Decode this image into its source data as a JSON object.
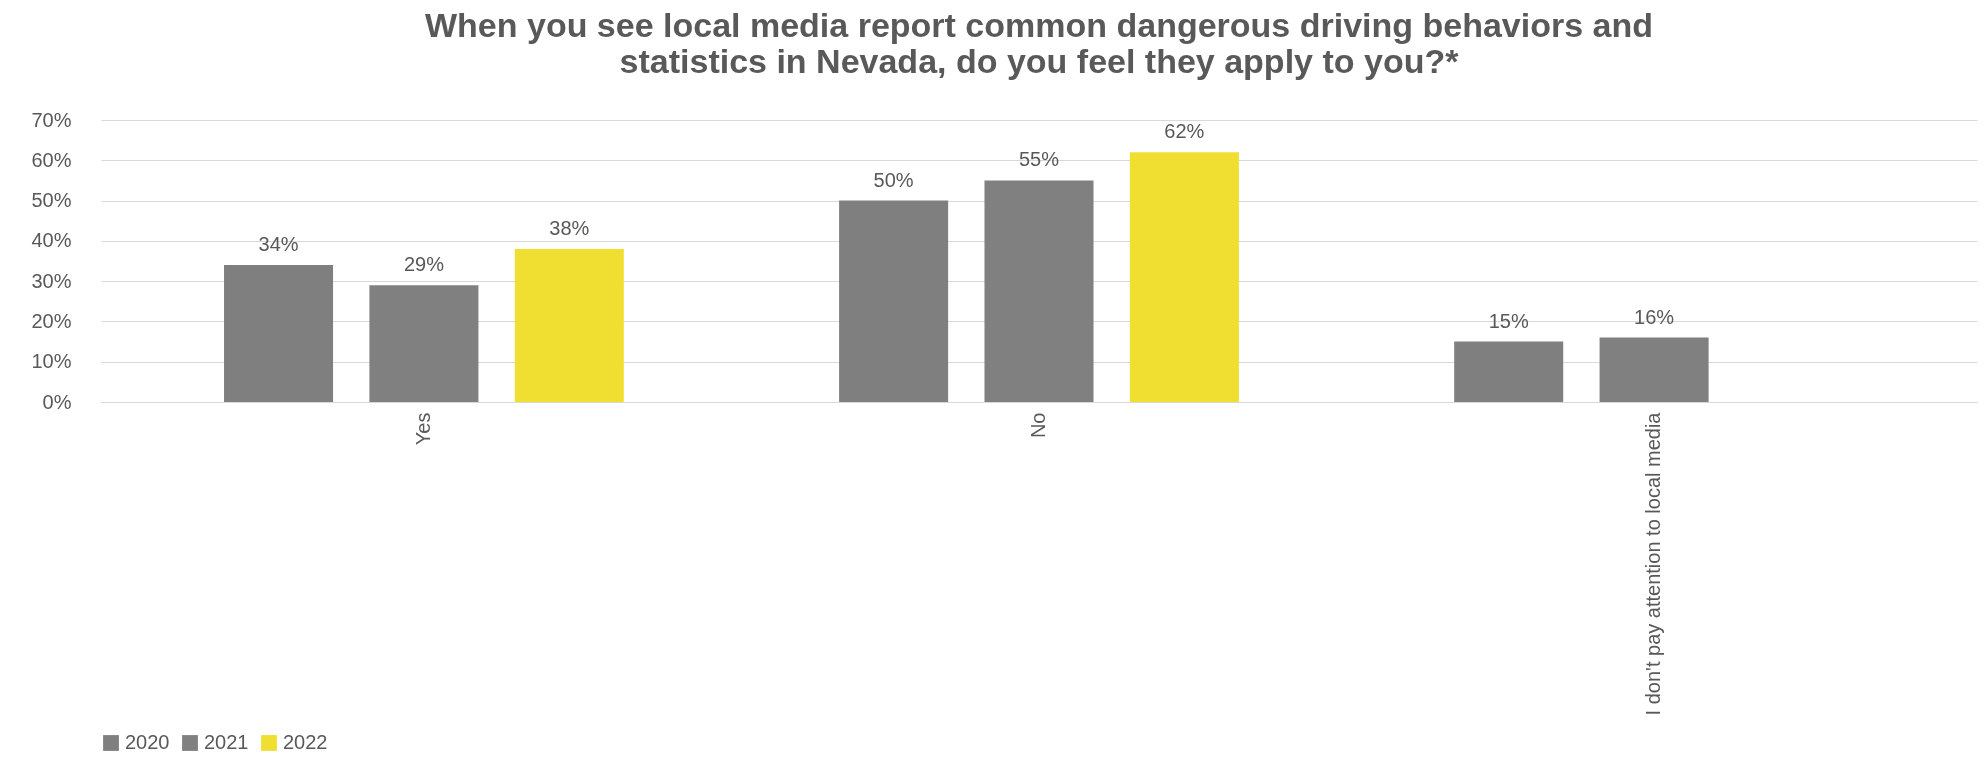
{
  "chart_data": {
    "type": "bar",
    "title": "When you see local media report common dangerous driving behaviors and statistics in Nevada, do you feel they apply to you?*",
    "categories": [
      "Yes",
      "No",
      "I don't pay attention to local media"
    ],
    "series": [
      {
        "name": "2020",
        "color": "#7f7f7f",
        "values": [
          34,
          50,
          15
        ],
        "value_labels": [
          "34%",
          "50%",
          "15%"
        ]
      },
      {
        "name": "2021",
        "color": "#808080",
        "values": [
          29,
          55,
          16
        ],
        "value_labels": [
          "29%",
          "55%",
          "16%"
        ]
      },
      {
        "name": "2022",
        "color": "#f0df31",
        "values": [
          38,
          62,
          null
        ],
        "value_labels": [
          "38%",
          "62%",
          null
        ]
      }
    ],
    "ylim": [
      0,
      70
    ],
    "yticks": [
      {
        "value": 0,
        "label": "0%"
      },
      {
        "value": 10,
        "label": "10%"
      },
      {
        "value": 20,
        "label": "20%"
      },
      {
        "value": 30,
        "label": "30%"
      },
      {
        "value": 40,
        "label": "40%"
      },
      {
        "value": 50,
        "label": "50%"
      },
      {
        "value": 60,
        "label": "60%"
      },
      {
        "value": 70,
        "label": "70%"
      }
    ],
    "grid": "y",
    "legend": "bottom"
  }
}
